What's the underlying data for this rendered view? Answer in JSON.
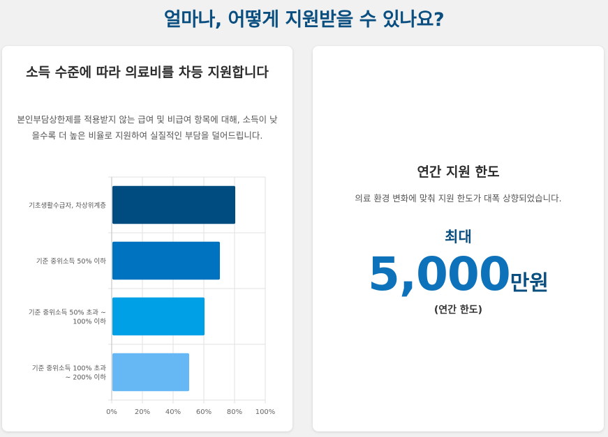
{
  "page": {
    "title": "얼마나, 어떻게 지원받을 수 있나요?"
  },
  "left_card": {
    "heading": "소득 수준에 따라 의료비를 차등 지원합니다",
    "description": "본인부담상한제를 적용받지 않는 급여 및 비급여 항목에 대해, 소득이 낮을수록 더 높은 비율로 지원하여 실질적인 부담을 덜어드립니다."
  },
  "right_card": {
    "heading": "연간 지원 한도",
    "description": "의료 환경 변화에 맞춰 지원 한도가 대폭 상향되었습니다.",
    "max_label": "최대",
    "amount": "5,000",
    "unit": "만원",
    "caption": "(연간 한도)"
  },
  "chart_data": {
    "type": "bar",
    "orientation": "horizontal",
    "categories": [
      [
        "기초생활수급자, 차상위계층"
      ],
      [
        "기준 중위소득 50% 이하"
      ],
      [
        "기준 중위소득 50% 초과 ~",
        "100% 이하"
      ],
      [
        "기준 중위소득 100% 초과",
        "~ 200% 이하"
      ]
    ],
    "values": [
      80,
      70,
      60,
      50
    ],
    "colors": [
      "#004c80",
      "#0073c0",
      "#00a0e6",
      "#66b8f5"
    ],
    "xlim": [
      0,
      100
    ],
    "xticks": [
      "0%",
      "20%",
      "40%",
      "60%",
      "80%",
      "100%"
    ],
    "grid": true,
    "legend": "none"
  }
}
